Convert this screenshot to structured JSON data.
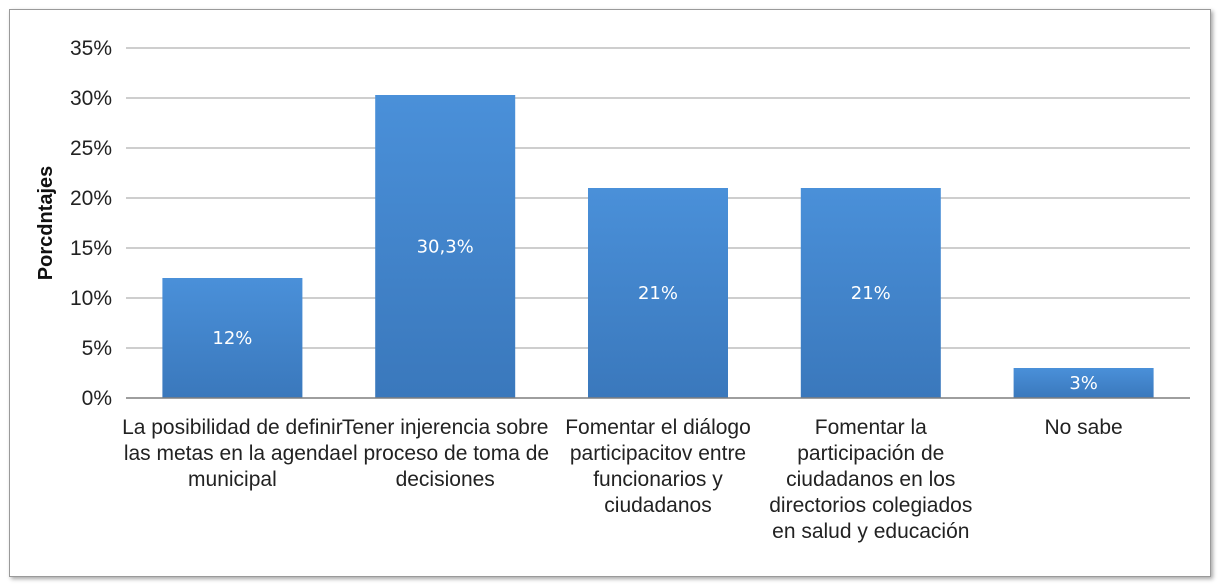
{
  "chart_data": {
    "type": "bar",
    "title": "",
    "xlabel": "",
    "ylabel": "Porcdntajes",
    "ylim": [
      0,
      35
    ],
    "yticks": [
      "0%",
      "5%",
      "10%",
      "15%",
      "20%",
      "25%",
      "30%",
      "35%"
    ],
    "grid": true,
    "legend": "none",
    "bar_color": "#4a90d9",
    "bar_color_dark": "#3a78bc",
    "categories": [
      [
        "La posibilidad de definir",
        "las metas en la agenda",
        "municipal"
      ],
      [
        "Tener injerencia sobre",
        "el proceso de toma de",
        "decisiones"
      ],
      [
        "Fomentar el diálogo",
        "participacitov entre",
        "funcionarios y",
        "ciudadanos"
      ],
      [
        "Fomentar la",
        "participación de",
        "ciudadanos en los",
        "directorios colegiados",
        "en salud y educación"
      ],
      [
        "No sabe"
      ]
    ],
    "values": [
      12,
      30.3,
      21,
      21,
      3
    ],
    "data_labels": [
      "12%",
      "30,3%",
      "21%",
      "21%",
      "3%"
    ]
  }
}
